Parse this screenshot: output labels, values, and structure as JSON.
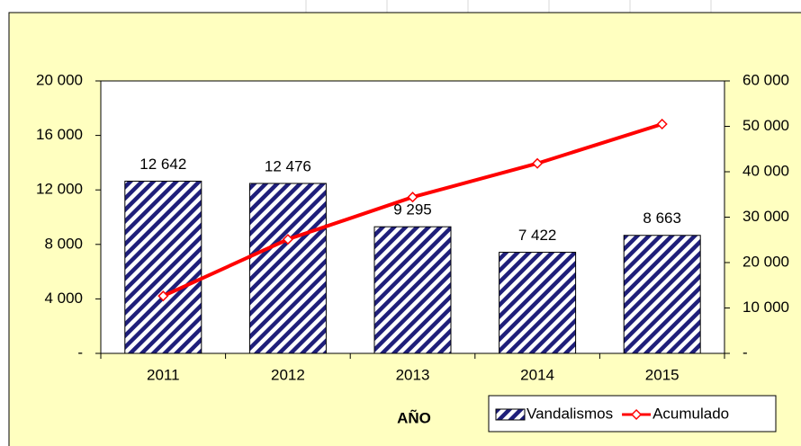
{
  "chart_data": {
    "type": "bar",
    "x_label": "AÑO",
    "categories": [
      "2011",
      "2012",
      "2013",
      "2014",
      "2015"
    ],
    "series": [
      {
        "name": "Vandalismos",
        "type": "bar",
        "color": "#1f1f7a",
        "values": [
          12642,
          12476,
          9295,
          7422,
          8663
        ],
        "value_labels": [
          "12 642",
          "12 476",
          "9 295",
          "7 422",
          "8 663"
        ]
      },
      {
        "name": "Acumulado",
        "type": "line",
        "axis": "y2",
        "color": "#ff0000",
        "values": [
          12642,
          25118,
          34413,
          41835,
          50498
        ]
      }
    ],
    "ylim": [
      0,
      20000
    ],
    "yticks": [
      {
        "value": 0,
        "label": "-"
      },
      {
        "value": 4000,
        "label": "4 000"
      },
      {
        "value": 8000,
        "label": "8 000"
      },
      {
        "value": 12000,
        "label": "12 000"
      },
      {
        "value": 16000,
        "label": "16 000"
      },
      {
        "value": 20000,
        "label": "20 000"
      }
    ],
    "y2lim": [
      0,
      60000
    ],
    "y2ticks": [
      {
        "value": 0,
        "label": "-"
      },
      {
        "value": 10000,
        "label": "10 000"
      },
      {
        "value": 20000,
        "label": "20 000"
      },
      {
        "value": 30000,
        "label": "30 000"
      },
      {
        "value": 40000,
        "label": "40 000"
      },
      {
        "value": 50000,
        "label": "50 000"
      },
      {
        "value": 60000,
        "label": "60 000"
      }
    ],
    "legend": "bottom-right"
  }
}
